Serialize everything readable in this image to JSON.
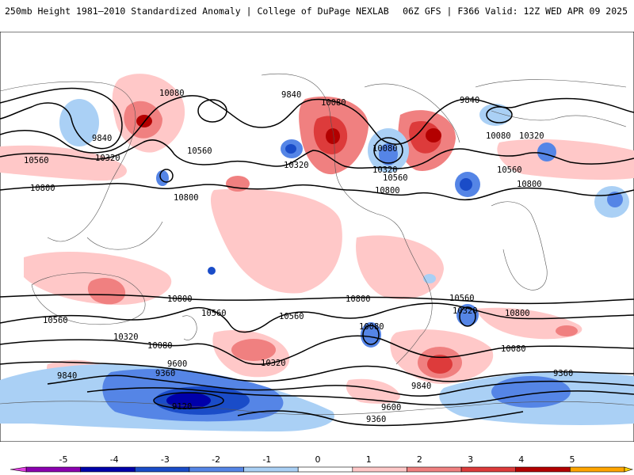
{
  "header": {
    "title_left": "250mb Height 1981–2010 Standardized Anomaly | College of DuPage NEXLAB",
    "title_right": "06Z GFS | F366 Valid: 12Z WED APR 09 2025"
  },
  "contour_labels": [
    "10080",
    "9840",
    "10080",
    "9840",
    "10560",
    "10320",
    "10560",
    "10800",
    "10800",
    "10320",
    "10080",
    "10320",
    "10560",
    "10800",
    "9840",
    "10080",
    "10320",
    "10560",
    "10800",
    "10800",
    "10560",
    "10560",
    "10320",
    "10080",
    "10320",
    "9840",
    "9360",
    "9600",
    "9120",
    "10800",
    "10560",
    "10080",
    "9840",
    "9600",
    "9360",
    "10560",
    "10320",
    "10800",
    "10080",
    "9360"
  ],
  "colorbar": {
    "ticks": [
      "-5",
      "-4",
      "-3",
      "-2",
      "-1",
      "0",
      "1",
      "2",
      "3",
      "4",
      "5"
    ],
    "colors": [
      "#8b00b0",
      "#0000aa",
      "#1a4cc8",
      "#5585e6",
      "#aad0f5",
      "#ffffff",
      "#ffc8c8",
      "#f08080",
      "#dd3b3b",
      "#b30000",
      "#ffa500"
    ],
    "end_colors": [
      "#e040e0",
      "#ffd000"
    ]
  }
}
